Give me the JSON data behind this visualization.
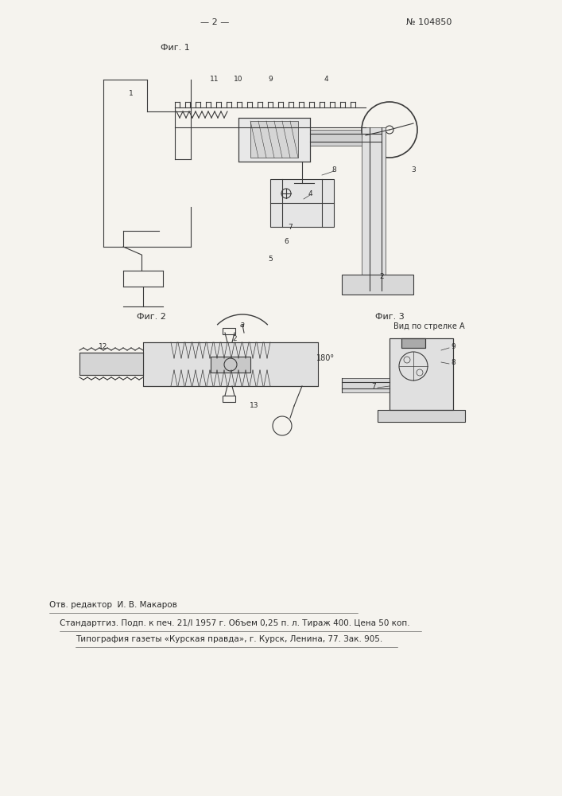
{
  "page_number": "— 2 —",
  "patent_number": "№ 104850",
  "fig1_label": "Фиг. 1",
  "fig2_label": "Фиг. 2",
  "fig3_label": "Фиг. 3",
  "arrow_label": "Вид по стрелке A",
  "angle_label": "180°",
  "footer_line1": "Отв. редактор  И. В. Макаров",
  "footer_line2": "Стандартгиз. Подп. к печ. 21/I 1957 г. Объем 0,25 п. л. Тираж 400. Цена 50 коп.",
  "footer_line3": "Типография газеты «Курская правда», г. Курск, Ленина, 77. Зак. 905.",
  "bg_color": "#f5f3ee",
  "text_color": "#2a2a2a",
  "line_color": "#3a3a3a",
  "part_labels_fig1": [
    "11",
    "10",
    "9",
    "4",
    "1",
    "8",
    "7",
    "6",
    "5",
    "3",
    "2"
  ],
  "part_labels_fig2": [
    "12",
    "2",
    "13"
  ],
  "part_labels_fig3": [
    "9",
    "8",
    "7"
  ]
}
